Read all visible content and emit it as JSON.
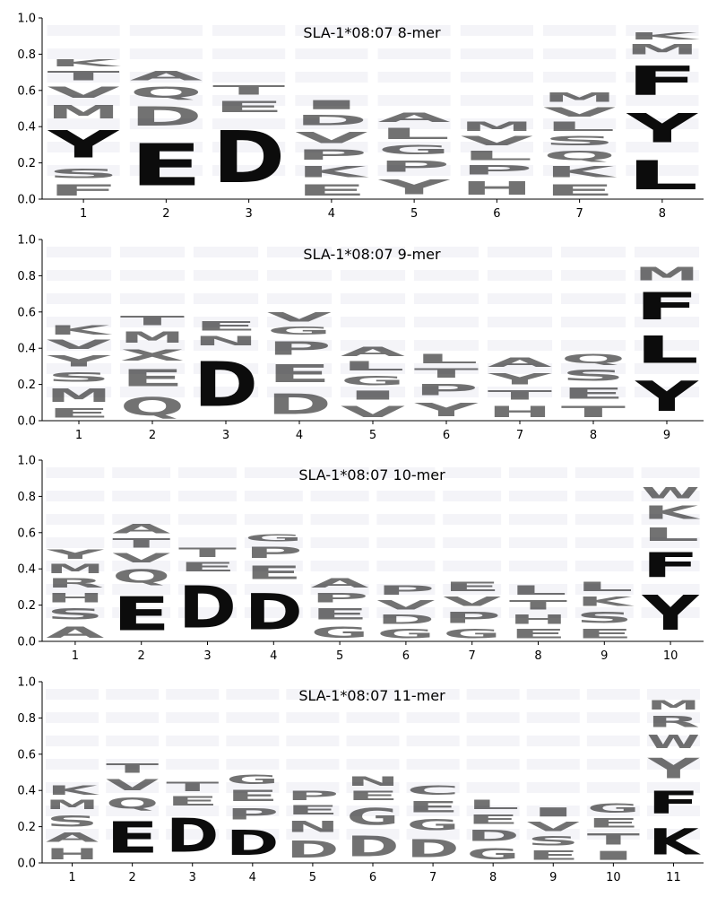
{
  "colors": {
    "acidic": "#b48cb4",
    "aromatic": "#a9bed9",
    "tyr": "#8ec4c2",
    "basic": "#e8b0ae",
    "pro_gly": "#d8d8a8",
    "polar": "#a8dca8",
    "hydrophobic": "#c8d4e8",
    "faint": "#e6e6ef"
  },
  "chart_data": [
    {
      "type": "sequence-logo",
      "title": "SLA-1*08:07 8-mer",
      "ylim": [
        0,
        1.0
      ],
      "yticks": [
        "0.0",
        "0.2",
        "0.4",
        "0.6",
        "0.8",
        "1.0"
      ],
      "xticks": [
        "1",
        "2",
        "3",
        "4",
        "5",
        "6",
        "7",
        "8"
      ],
      "positions": [
        [
          {
            "aa": "F",
            "h": 0.1
          },
          {
            "aa": "S",
            "h": 0.08
          },
          {
            "aa": "Y",
            "h": 0.24
          },
          {
            "aa": "M",
            "h": 0.12
          },
          {
            "aa": "V",
            "h": 0.1
          },
          {
            "aa": "T",
            "h": 0.08
          },
          {
            "aa": "K",
            "h": 0.06
          }
        ],
        [
          {
            "aa": "E",
            "h": 0.37
          },
          {
            "aa": "D",
            "h": 0.17
          },
          {
            "aa": "Q",
            "h": 0.1
          },
          {
            "aa": "A",
            "h": 0.08
          }
        ],
        [
          {
            "aa": "D",
            "h": 0.46
          },
          {
            "aa": "E",
            "h": 0.1
          },
          {
            "aa": "T",
            "h": 0.08
          }
        ],
        [
          {
            "aa": "E",
            "h": 0.1
          },
          {
            "aa": "K",
            "h": 0.1
          },
          {
            "aa": "P",
            "h": 0.09
          },
          {
            "aa": "V",
            "h": 0.1
          },
          {
            "aa": "D",
            "h": 0.09
          },
          {
            "aa": "I",
            "h": 0.08
          }
        ],
        [
          {
            "aa": "Y",
            "h": 0.13
          },
          {
            "aa": "P",
            "h": 0.1
          },
          {
            "aa": "G",
            "h": 0.08
          },
          {
            "aa": "L",
            "h": 0.1
          },
          {
            "aa": "A",
            "h": 0.08
          }
        ],
        [
          {
            "aa": "H",
            "h": 0.12
          },
          {
            "aa": "P",
            "h": 0.08
          },
          {
            "aa": "L",
            "h": 0.08
          },
          {
            "aa": "V",
            "h": 0.08
          },
          {
            "aa": "M",
            "h": 0.08
          }
        ],
        [
          {
            "aa": "E",
            "h": 0.1
          },
          {
            "aa": "K",
            "h": 0.1
          },
          {
            "aa": "Q",
            "h": 0.08
          },
          {
            "aa": "S",
            "h": 0.08
          },
          {
            "aa": "L",
            "h": 0.08
          },
          {
            "aa": "V",
            "h": 0.08
          },
          {
            "aa": "M",
            "h": 0.08
          }
        ],
        [
          {
            "aa": "L",
            "h": 0.26
          },
          {
            "aa": "Y",
            "h": 0.26
          },
          {
            "aa": "F",
            "h": 0.26
          },
          {
            "aa": "M",
            "h": 0.09
          },
          {
            "aa": "K",
            "h": 0.06
          }
        ]
      ]
    },
    {
      "type": "sequence-logo",
      "title": "SLA-1*08:07 9-mer",
      "ylim": [
        0,
        1.0
      ],
      "yticks": [
        "0.0",
        "0.2",
        "0.4",
        "0.6",
        "0.8",
        "1.0"
      ],
      "xticks": [
        "1",
        "2",
        "3",
        "4",
        "5",
        "6",
        "7",
        "8",
        "9"
      ],
      "positions": [
        [
          {
            "aa": "E",
            "h": 0.08
          },
          {
            "aa": "M",
            "h": 0.12
          },
          {
            "aa": "S",
            "h": 0.08
          },
          {
            "aa": "Y",
            "h": 0.1
          },
          {
            "aa": "V",
            "h": 0.08
          },
          {
            "aa": "K",
            "h": 0.08
          }
        ],
        [
          {
            "aa": "Q",
            "h": 0.16
          },
          {
            "aa": "E",
            "h": 0.15
          },
          {
            "aa": "X",
            "h": 0.1
          },
          {
            "aa": "M",
            "h": 0.1
          },
          {
            "aa": "T",
            "h": 0.08
          }
        ],
        [
          {
            "aa": "D",
            "h": 0.4
          },
          {
            "aa": "N",
            "h": 0.08
          },
          {
            "aa": "E",
            "h": 0.08
          }
        ],
        [
          {
            "aa": "D",
            "h": 0.18
          },
          {
            "aa": "E",
            "h": 0.16
          },
          {
            "aa": "P",
            "h": 0.12
          },
          {
            "aa": "G",
            "h": 0.07
          },
          {
            "aa": "V",
            "h": 0.08
          }
        ],
        [
          {
            "aa": "V",
            "h": 0.1
          },
          {
            "aa": "I",
            "h": 0.08
          },
          {
            "aa": "G",
            "h": 0.08
          },
          {
            "aa": "L",
            "h": 0.08
          },
          {
            "aa": "A",
            "h": 0.08
          }
        ],
        [
          {
            "aa": "Y",
            "h": 0.12
          },
          {
            "aa": "P",
            "h": 0.1
          },
          {
            "aa": "T",
            "h": 0.08
          },
          {
            "aa": "L",
            "h": 0.08
          }
        ],
        [
          {
            "aa": "H",
            "h": 0.1
          },
          {
            "aa": "T",
            "h": 0.08
          },
          {
            "aa": "Y",
            "h": 0.1
          },
          {
            "aa": "A",
            "h": 0.08
          }
        ],
        [
          {
            "aa": "T",
            "h": 0.1
          },
          {
            "aa": "E",
            "h": 0.1
          },
          {
            "aa": "S",
            "h": 0.1
          },
          {
            "aa": "Q",
            "h": 0.08
          }
        ],
        [
          {
            "aa": "Y",
            "h": 0.27
          },
          {
            "aa": "L",
            "h": 0.24
          },
          {
            "aa": "F",
            "h": 0.24
          },
          {
            "aa": "M",
            "h": 0.12
          }
        ]
      ]
    },
    {
      "type": "sequence-logo",
      "title": "SLA-1*08:07 10-mer",
      "ylim": [
        0,
        1.0
      ],
      "yticks": [
        "0.0",
        "0.2",
        "0.4",
        "0.6",
        "0.8",
        "1.0"
      ],
      "xticks": [
        "1",
        "2",
        "3",
        "4",
        "5",
        "6",
        "7",
        "8",
        "9",
        "10"
      ],
      "positions": [
        [
          {
            "aa": "A",
            "h": 0.1
          },
          {
            "aa": "S",
            "h": 0.1
          },
          {
            "aa": "H",
            "h": 0.08
          },
          {
            "aa": "R",
            "h": 0.08
          },
          {
            "aa": "M",
            "h": 0.08
          },
          {
            "aa": "Y",
            "h": 0.08
          }
        ],
        [
          {
            "aa": "E",
            "h": 0.3
          },
          {
            "aa": "Q",
            "h": 0.12
          },
          {
            "aa": "V",
            "h": 0.08
          },
          {
            "aa": "T",
            "h": 0.08
          },
          {
            "aa": "A",
            "h": 0.08
          }
        ],
        [
          {
            "aa": "D",
            "h": 0.37
          },
          {
            "aa": "E",
            "h": 0.08
          },
          {
            "aa": "T",
            "h": 0.08
          }
        ],
        [
          {
            "aa": "D",
            "h": 0.32
          },
          {
            "aa": "E",
            "h": 0.12
          },
          {
            "aa": "P",
            "h": 0.1
          },
          {
            "aa": "G",
            "h": 0.06
          }
        ],
        [
          {
            "aa": "G",
            "h": 0.1
          },
          {
            "aa": "E",
            "h": 0.1
          },
          {
            "aa": "P",
            "h": 0.08
          },
          {
            "aa": "A",
            "h": 0.08
          }
        ],
        [
          {
            "aa": "G",
            "h": 0.08
          },
          {
            "aa": "D",
            "h": 0.08
          },
          {
            "aa": "V",
            "h": 0.08
          },
          {
            "aa": "P",
            "h": 0.08
          }
        ],
        [
          {
            "aa": "G",
            "h": 0.08
          },
          {
            "aa": "P",
            "h": 0.1
          },
          {
            "aa": "V",
            "h": 0.08
          },
          {
            "aa": "E",
            "h": 0.08
          }
        ],
        [
          {
            "aa": "E",
            "h": 0.08
          },
          {
            "aa": "H",
            "h": 0.08
          },
          {
            "aa": "T",
            "h": 0.08
          },
          {
            "aa": "L",
            "h": 0.08
          }
        ],
        [
          {
            "aa": "E",
            "h": 0.08
          },
          {
            "aa": "S",
            "h": 0.1
          },
          {
            "aa": "K",
            "h": 0.08
          },
          {
            "aa": "L",
            "h": 0.08
          }
        ],
        [
          {
            "aa": "Y",
            "h": 0.31
          },
          {
            "aa": "F",
            "h": 0.22
          },
          {
            "aa": "L",
            "h": 0.12
          },
          {
            "aa": "K",
            "h": 0.12
          },
          {
            "aa": "W",
            "h": 0.1
          }
        ]
      ]
    },
    {
      "type": "sequence-logo",
      "title": "SLA-1*08:07 11-mer",
      "ylim": [
        0,
        1.0
      ],
      "yticks": [
        "0.0",
        "0.2",
        "0.4",
        "0.6",
        "0.8",
        "1.0"
      ],
      "xticks": [
        "1",
        "2",
        "3",
        "4",
        "5",
        "6",
        "7",
        "8",
        "9",
        "10",
        "11"
      ],
      "positions": [
        [
          {
            "aa": "H",
            "h": 0.1
          },
          {
            "aa": "A",
            "h": 0.08
          },
          {
            "aa": "S",
            "h": 0.1
          },
          {
            "aa": "M",
            "h": 0.08
          },
          {
            "aa": "K",
            "h": 0.08
          }
        ],
        [
          {
            "aa": "E",
            "h": 0.28
          },
          {
            "aa": "Q",
            "h": 0.1
          },
          {
            "aa": "V",
            "h": 0.1
          },
          {
            "aa": "T",
            "h": 0.08
          }
        ],
        [
          {
            "aa": "D",
            "h": 0.3
          },
          {
            "aa": "E",
            "h": 0.08
          },
          {
            "aa": "T",
            "h": 0.08
          }
        ],
        [
          {
            "aa": "D",
            "h": 0.22
          },
          {
            "aa": "P",
            "h": 0.1
          },
          {
            "aa": "E",
            "h": 0.1
          },
          {
            "aa": "G",
            "h": 0.08
          }
        ],
        [
          {
            "aa": "D",
            "h": 0.15
          },
          {
            "aa": "N",
            "h": 0.1
          },
          {
            "aa": "E",
            "h": 0.08
          },
          {
            "aa": "P",
            "h": 0.08
          }
        ],
        [
          {
            "aa": "D",
            "h": 0.18
          },
          {
            "aa": "G",
            "h": 0.15
          },
          {
            "aa": "E",
            "h": 0.08
          },
          {
            "aa": "N",
            "h": 0.08
          }
        ],
        [
          {
            "aa": "D",
            "h": 0.16
          },
          {
            "aa": "G",
            "h": 0.1
          },
          {
            "aa": "E",
            "h": 0.1
          },
          {
            "aa": "C",
            "h": 0.08
          }
        ],
        [
          {
            "aa": "G",
            "h": 0.1
          },
          {
            "aa": "D",
            "h": 0.1
          },
          {
            "aa": "E",
            "h": 0.08
          },
          {
            "aa": "L",
            "h": 0.08
          }
        ],
        [
          {
            "aa": "E",
            "h": 0.08
          },
          {
            "aa": "S",
            "h": 0.08
          },
          {
            "aa": "V",
            "h": 0.08
          },
          {
            "aa": "I",
            "h": 0.08
          }
        ],
        [
          {
            "aa": "I",
            "h": 0.08
          },
          {
            "aa": "T",
            "h": 0.1
          },
          {
            "aa": "E",
            "h": 0.08
          },
          {
            "aa": "G",
            "h": 0.08
          }
        ],
        [
          {
            "aa": "K",
            "h": 0.23
          },
          {
            "aa": "F",
            "h": 0.2
          },
          {
            "aa": "Y",
            "h": 0.18
          },
          {
            "aa": "W",
            "h": 0.12
          },
          {
            "aa": "R",
            "h": 0.1
          },
          {
            "aa": "M",
            "h": 0.08
          }
        ]
      ]
    }
  ]
}
